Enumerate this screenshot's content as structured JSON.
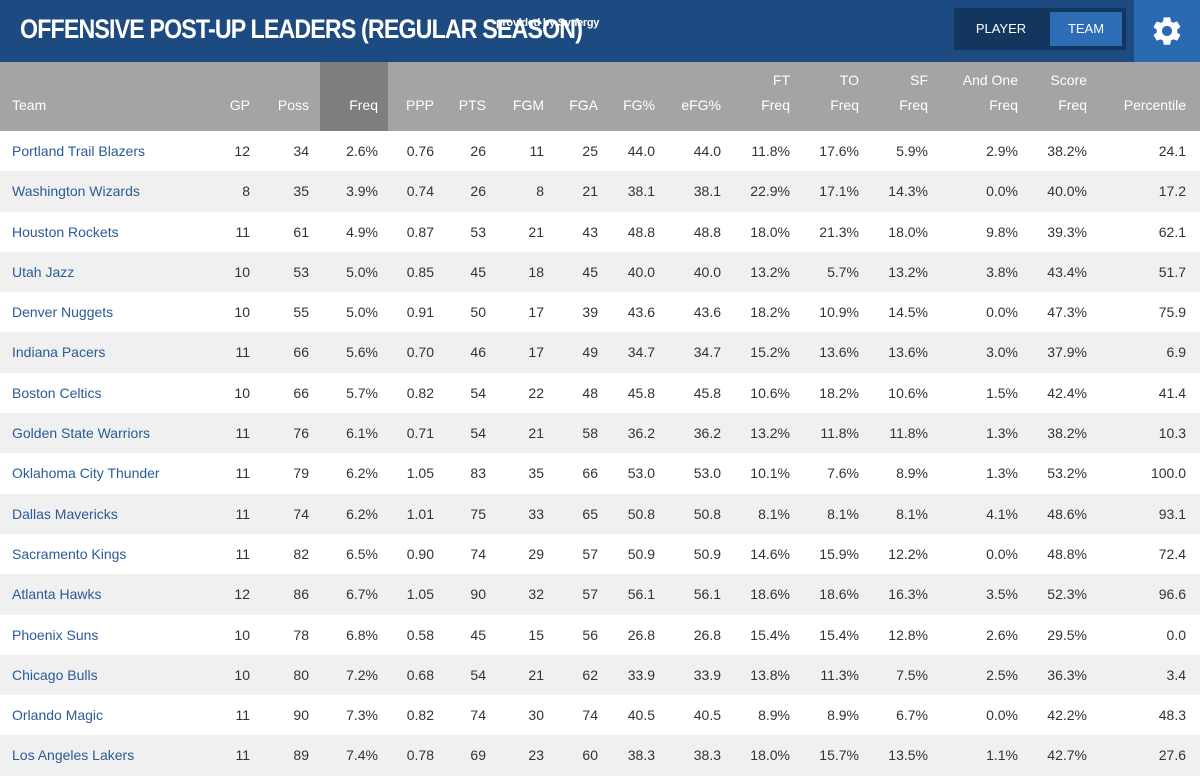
{
  "header": {
    "title": "OFFENSIVE POST-UP LEADERS (REGULAR SEASON)",
    "provided_by": "provided by Synergy",
    "toggle": {
      "player_label": "PLAYER",
      "team_label": "TEAM",
      "selected": "TEAM"
    },
    "settings_icon": "gear-icon"
  },
  "colors": {
    "top_bar": "#1d4a80",
    "header_row": "#a4a4a4",
    "sorted_column": "#7e7e7e",
    "team_link": "#2a5b97"
  },
  "table": {
    "sorted_column": "Freq",
    "columns": [
      {
        "key": "team",
        "lines": [
          "",
          "Team"
        ]
      },
      {
        "key": "gp",
        "lines": [
          "",
          "GP"
        ]
      },
      {
        "key": "poss",
        "lines": [
          "",
          "Poss"
        ]
      },
      {
        "key": "freq",
        "lines": [
          "",
          "Freq"
        ]
      },
      {
        "key": "ppp",
        "lines": [
          "",
          "PPP"
        ]
      },
      {
        "key": "pts",
        "lines": [
          "",
          "PTS"
        ]
      },
      {
        "key": "fgm",
        "lines": [
          "",
          "FGM"
        ]
      },
      {
        "key": "fga",
        "lines": [
          "",
          "FGA"
        ]
      },
      {
        "key": "fgp",
        "lines": [
          "",
          "FG%"
        ]
      },
      {
        "key": "efg",
        "lines": [
          "",
          "eFG%"
        ]
      },
      {
        "key": "ft",
        "lines": [
          "FT",
          "Freq"
        ]
      },
      {
        "key": "to",
        "lines": [
          "TO",
          "Freq"
        ]
      },
      {
        "key": "sf",
        "lines": [
          "SF",
          "Freq"
        ]
      },
      {
        "key": "andone",
        "lines": [
          "And One",
          "Freq"
        ]
      },
      {
        "key": "score",
        "lines": [
          "Score",
          "Freq"
        ]
      },
      {
        "key": "pct",
        "lines": [
          "",
          "Percentile"
        ]
      }
    ],
    "rows": [
      [
        "Portland Trail Blazers",
        "12",
        "34",
        "2.6%",
        "0.76",
        "26",
        "11",
        "25",
        "44.0",
        "44.0",
        "11.8%",
        "17.6%",
        "5.9%",
        "2.9%",
        "38.2%",
        "24.1"
      ],
      [
        "Washington Wizards",
        "8",
        "35",
        "3.9%",
        "0.74",
        "26",
        "8",
        "21",
        "38.1",
        "38.1",
        "22.9%",
        "17.1%",
        "14.3%",
        "0.0%",
        "40.0%",
        "17.2"
      ],
      [
        "Houston Rockets",
        "11",
        "61",
        "4.9%",
        "0.87",
        "53",
        "21",
        "43",
        "48.8",
        "48.8",
        "18.0%",
        "21.3%",
        "18.0%",
        "9.8%",
        "39.3%",
        "62.1"
      ],
      [
        "Utah Jazz",
        "10",
        "53",
        "5.0%",
        "0.85",
        "45",
        "18",
        "45",
        "40.0",
        "40.0",
        "13.2%",
        "5.7%",
        "13.2%",
        "3.8%",
        "43.4%",
        "51.7"
      ],
      [
        "Denver Nuggets",
        "10",
        "55",
        "5.0%",
        "0.91",
        "50",
        "17",
        "39",
        "43.6",
        "43.6",
        "18.2%",
        "10.9%",
        "14.5%",
        "0.0%",
        "47.3%",
        "75.9"
      ],
      [
        "Indiana Pacers",
        "11",
        "66",
        "5.6%",
        "0.70",
        "46",
        "17",
        "49",
        "34.7",
        "34.7",
        "15.2%",
        "13.6%",
        "13.6%",
        "3.0%",
        "37.9%",
        "6.9"
      ],
      [
        "Boston Celtics",
        "10",
        "66",
        "5.7%",
        "0.82",
        "54",
        "22",
        "48",
        "45.8",
        "45.8",
        "10.6%",
        "18.2%",
        "10.6%",
        "1.5%",
        "42.4%",
        "41.4"
      ],
      [
        "Golden State Warriors",
        "11",
        "76",
        "6.1%",
        "0.71",
        "54",
        "21",
        "58",
        "36.2",
        "36.2",
        "13.2%",
        "11.8%",
        "11.8%",
        "1.3%",
        "38.2%",
        "10.3"
      ],
      [
        "Oklahoma City Thunder",
        "11",
        "79",
        "6.2%",
        "1.05",
        "83",
        "35",
        "66",
        "53.0",
        "53.0",
        "10.1%",
        "7.6%",
        "8.9%",
        "1.3%",
        "53.2%",
        "100.0"
      ],
      [
        "Dallas Mavericks",
        "11",
        "74",
        "6.2%",
        "1.01",
        "75",
        "33",
        "65",
        "50.8",
        "50.8",
        "8.1%",
        "8.1%",
        "8.1%",
        "4.1%",
        "48.6%",
        "93.1"
      ],
      [
        "Sacramento Kings",
        "11",
        "82",
        "6.5%",
        "0.90",
        "74",
        "29",
        "57",
        "50.9",
        "50.9",
        "14.6%",
        "15.9%",
        "12.2%",
        "0.0%",
        "48.8%",
        "72.4"
      ],
      [
        "Atlanta Hawks",
        "12",
        "86",
        "6.7%",
        "1.05",
        "90",
        "32",
        "57",
        "56.1",
        "56.1",
        "18.6%",
        "18.6%",
        "16.3%",
        "3.5%",
        "52.3%",
        "96.6"
      ],
      [
        "Phoenix Suns",
        "10",
        "78",
        "6.8%",
        "0.58",
        "45",
        "15",
        "56",
        "26.8",
        "26.8",
        "15.4%",
        "15.4%",
        "12.8%",
        "2.6%",
        "29.5%",
        "0.0"
      ],
      [
        "Chicago Bulls",
        "10",
        "80",
        "7.2%",
        "0.68",
        "54",
        "21",
        "62",
        "33.9",
        "33.9",
        "13.8%",
        "11.3%",
        "7.5%",
        "2.5%",
        "36.3%",
        "3.4"
      ],
      [
        "Orlando Magic",
        "11",
        "90",
        "7.3%",
        "0.82",
        "74",
        "30",
        "74",
        "40.5",
        "40.5",
        "8.9%",
        "8.9%",
        "6.7%",
        "0.0%",
        "42.2%",
        "48.3"
      ],
      [
        "Los Angeles Lakers",
        "11",
        "89",
        "7.4%",
        "0.78",
        "69",
        "23",
        "60",
        "38.3",
        "38.3",
        "18.0%",
        "15.7%",
        "13.5%",
        "1.1%",
        "42.7%",
        "27.6"
      ]
    ]
  }
}
